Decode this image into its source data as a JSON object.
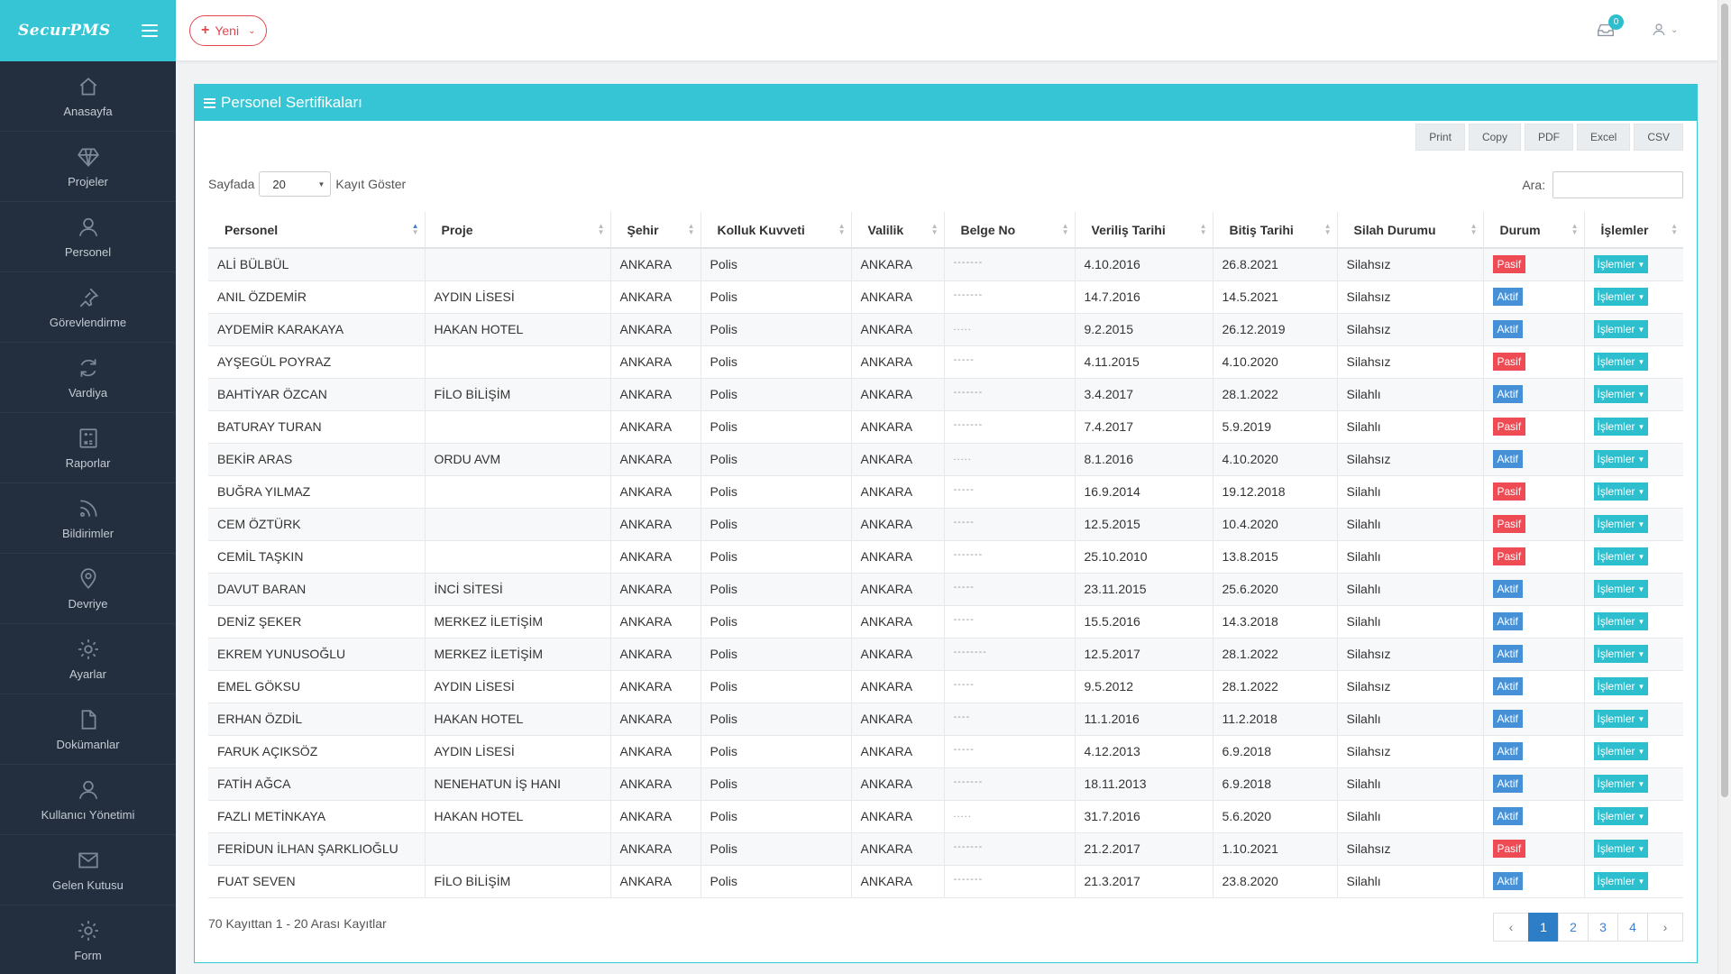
{
  "brand": {
    "name": "SecurPMS"
  },
  "sidebar": {
    "items": [
      {
        "label": "Anasayfa",
        "icon": "home-icon"
      },
      {
        "label": "Projeler",
        "icon": "diamond-icon"
      },
      {
        "label": "Personel",
        "icon": "user-icon"
      },
      {
        "label": "Görevlendirme",
        "icon": "pin-icon"
      },
      {
        "label": "Vardiya",
        "icon": "refresh-icon"
      },
      {
        "label": "Raporlar",
        "icon": "calculator-icon"
      },
      {
        "label": "Bildirimler",
        "icon": "rss-icon"
      },
      {
        "label": "Devriye",
        "icon": "location-icon"
      },
      {
        "label": "Ayarlar",
        "icon": "gear-icon"
      },
      {
        "label": "Dokümanlar",
        "icon": "document-icon"
      },
      {
        "label": "Kullanıcı Yönetimi",
        "icon": "user-icon"
      },
      {
        "label": "Gelen Kutusu",
        "icon": "envelope-icon"
      },
      {
        "label": "Form",
        "icon": "gear-icon"
      }
    ]
  },
  "topbar": {
    "new_label": "Yeni",
    "mail_count": "0"
  },
  "panel": {
    "title": "Personel Sertifikaları"
  },
  "exports": [
    "Print",
    "Copy",
    "PDF",
    "Excel",
    "CSV"
  ],
  "length": {
    "prefix": "Sayfada",
    "value": "20",
    "suffix": "Kayıt Göster"
  },
  "search": {
    "label": "Ara:",
    "value": ""
  },
  "table": {
    "headers": [
      "Personel",
      "Proje",
      "Şehir",
      "Kolluk Kuvveti",
      "Valilik",
      "Belge No",
      "Veriliş Tarihi",
      "Bitiş Tarihi",
      "Silah Durumu",
      "Durum",
      "İşlemler"
    ],
    "action_label": "İşlemler",
    "rows": [
      {
        "personel": "ALİ BÜLBÜL",
        "proje": "",
        "sehir": "ANKARA",
        "kolluk": "Polis",
        "valilik": "ANKARA",
        "belge": "-------",
        "verilis": "4.10.2016",
        "bitis": "26.8.2021",
        "silah": "Silahsız",
        "durum": "Pasif"
      },
      {
        "personel": "ANIL ÖZDEMİR",
        "proje": "AYDIN LİSESİ",
        "sehir": "ANKARA",
        "kolluk": "Polis",
        "valilik": "ANKARA",
        "belge": "-------",
        "verilis": "14.7.2016",
        "bitis": "14.5.2021",
        "silah": "Silahsız",
        "durum": "Aktif"
      },
      {
        "personel": "AYDEMİR KARAKAYA",
        "proje": "HAKAN HOTEL",
        "sehir": "ANKARA",
        "kolluk": "Polis",
        "valilik": "ANKARA",
        "belge": ".....",
        "verilis": "9.2.2015",
        "bitis": "26.12.2019",
        "silah": "Silahsız",
        "durum": "Aktif"
      },
      {
        "personel": "AYŞEGÜL POYRAZ",
        "proje": "",
        "sehir": "ANKARA",
        "kolluk": "Polis",
        "valilik": "ANKARA",
        "belge": "-----",
        "verilis": "4.11.2015",
        "bitis": "4.10.2020",
        "silah": "Silahsız",
        "durum": "Pasif"
      },
      {
        "personel": "BAHTİYAR ÖZCAN",
        "proje": "FİLO BİLİŞİM",
        "sehir": "ANKARA",
        "kolluk": "Polis",
        "valilik": "ANKARA",
        "belge": "-------",
        "verilis": "3.4.2017",
        "bitis": "28.1.2022",
        "silah": "Silahlı",
        "durum": "Aktif"
      },
      {
        "personel": "BATURAY TURAN",
        "proje": "",
        "sehir": "ANKARA",
        "kolluk": "Polis",
        "valilik": "ANKARA",
        "belge": "-------",
        "verilis": "7.4.2017",
        "bitis": "5.9.2019",
        "silah": "Silahlı",
        "durum": "Pasif"
      },
      {
        "personel": "BEKİR ARAS",
        "proje": "ORDU AVM",
        "sehir": "ANKARA",
        "kolluk": "Polis",
        "valilik": "ANKARA",
        "belge": ".....",
        "verilis": "8.1.2016",
        "bitis": "4.10.2020",
        "silah": "Silahsız",
        "durum": "Aktif"
      },
      {
        "personel": "BUĞRA YILMAZ",
        "proje": "",
        "sehir": "ANKARA",
        "kolluk": "Polis",
        "valilik": "ANKARA",
        "belge": "-----",
        "verilis": "16.9.2014",
        "bitis": "19.12.2018",
        "silah": "Silahlı",
        "durum": "Pasif"
      },
      {
        "personel": "CEM ÖZTÜRK",
        "proje": "",
        "sehir": "ANKARA",
        "kolluk": "Polis",
        "valilik": "ANKARA",
        "belge": "-----",
        "verilis": "12.5.2015",
        "bitis": "10.4.2020",
        "silah": "Silahlı",
        "durum": "Pasif"
      },
      {
        "personel": "CEMİL TAŞKIN",
        "proje": "",
        "sehir": "ANKARA",
        "kolluk": "Polis",
        "valilik": "ANKARA",
        "belge": "-------",
        "verilis": "25.10.2010",
        "bitis": "13.8.2015",
        "silah": "Silahlı",
        "durum": "Pasif"
      },
      {
        "personel": "DAVUT BARAN",
        "proje": "İNCİ SİTESİ",
        "sehir": "ANKARA",
        "kolluk": "Polis",
        "valilik": "ANKARA",
        "belge": "-----",
        "verilis": "23.11.2015",
        "bitis": "25.6.2020",
        "silah": "Silahlı",
        "durum": "Aktif"
      },
      {
        "personel": "DENİZ ŞEKER",
        "proje": "MERKEZ İLETİŞİM",
        "sehir": "ANKARA",
        "kolluk": "Polis",
        "valilik": "ANKARA",
        "belge": "-----",
        "verilis": "15.5.2016",
        "bitis": "14.3.2018",
        "silah": "Silahlı",
        "durum": "Aktif"
      },
      {
        "personel": "EKREM YUNUSOĞLU",
        "proje": "MERKEZ İLETİŞİM",
        "sehir": "ANKARA",
        "kolluk": "Polis",
        "valilik": "ANKARA",
        "belge": "--------",
        "verilis": "12.5.2017",
        "bitis": "28.1.2022",
        "silah": "Silahsız",
        "durum": "Aktif"
      },
      {
        "personel": "EMEL GÖKSU",
        "proje": "AYDIN LİSESİ",
        "sehir": "ANKARA",
        "kolluk": "Polis",
        "valilik": "ANKARA",
        "belge": "-----",
        "verilis": "9.5.2012",
        "bitis": "28.1.2022",
        "silah": "Silahsız",
        "durum": "Aktif"
      },
      {
        "personel": "ERHAN ÖZDİL",
        "proje": "HAKAN HOTEL",
        "sehir": "ANKARA",
        "kolluk": "Polis",
        "valilik": "ANKARA",
        "belge": "----",
        "verilis": "11.1.2016",
        "bitis": "11.2.2018",
        "silah": "Silahlı",
        "durum": "Aktif"
      },
      {
        "personel": "FARUK AÇIKSÖZ",
        "proje": "AYDIN LİSESİ",
        "sehir": "ANKARA",
        "kolluk": "Polis",
        "valilik": "ANKARA",
        "belge": "-----",
        "verilis": "4.12.2013",
        "bitis": "6.9.2018",
        "silah": "Silahsız",
        "durum": "Aktif"
      },
      {
        "personel": "FATİH AĞCA",
        "proje": "NENEHATUN İŞ HANI",
        "sehir": "ANKARA",
        "kolluk": "Polis",
        "valilik": "ANKARA",
        "belge": "-------",
        "verilis": "18.11.2013",
        "bitis": "6.9.2018",
        "silah": "Silahlı",
        "durum": "Aktif"
      },
      {
        "personel": "FAZLI METİNKAYA",
        "proje": "HAKAN HOTEL",
        "sehir": "ANKARA",
        "kolluk": "Polis",
        "valilik": "ANKARA",
        "belge": ".....",
        "verilis": "31.7.2016",
        "bitis": "5.6.2020",
        "silah": "Silahlı",
        "durum": "Aktif"
      },
      {
        "personel": "FERİDUN İLHAN ŞARKLIOĞLU",
        "proje": "",
        "sehir": "ANKARA",
        "kolluk": "Polis",
        "valilik": "ANKARA",
        "belge": "-------",
        "verilis": "21.2.2017",
        "bitis": "1.10.2021",
        "silah": "Silahsız",
        "durum": "Pasif"
      },
      {
        "personel": "FUAT SEVEN",
        "proje": "FİLO BİLİŞİM",
        "sehir": "ANKARA",
        "kolluk": "Polis",
        "valilik": "ANKARA",
        "belge": "-------",
        "verilis": "21.3.2017",
        "bitis": "23.8.2020",
        "silah": "Silahlı",
        "durum": "Aktif"
      }
    ]
  },
  "info": "70 Kayıttan 1 - 20 Arası Kayıtlar",
  "pagination": {
    "prev": "‹",
    "next": "›",
    "pages": [
      "1",
      "2",
      "3",
      "4"
    ],
    "active": "1"
  },
  "colors": {
    "accent": "#36c5d4",
    "sidebar": "#232f3e",
    "pasif": "#ee4b55",
    "aktif": "#4590d6",
    "new_button": "#e4464c"
  }
}
